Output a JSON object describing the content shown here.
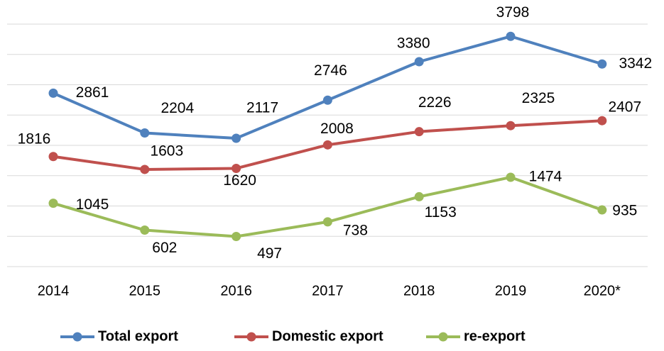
{
  "chart_data": {
    "type": "line",
    "categories": [
      "2014",
      "2015",
      "2016",
      "2017",
      "2018",
      "2019",
      "2020*"
    ],
    "series": [
      {
        "name": "Total export",
        "color": "#4f81bd",
        "values": [
          2861,
          2204,
          2117,
          2746,
          3380,
          3798,
          3342
        ]
      },
      {
        "name": "Domestic export",
        "color": "#c0504d",
        "values": [
          1816,
          1603,
          1620,
          2008,
          2226,
          2325,
          2407
        ]
      },
      {
        "name": "re-export",
        "color": "#9bbb59",
        "values": [
          1045,
          602,
          497,
          738,
          1153,
          1474,
          935
        ]
      }
    ],
    "ylim": [
      0,
      4000
    ],
    "yticks": [
      0,
      500,
      1000,
      1500,
      2000,
      2500,
      3000,
      3500,
      4000
    ],
    "grid": true,
    "legend": "bottom"
  }
}
